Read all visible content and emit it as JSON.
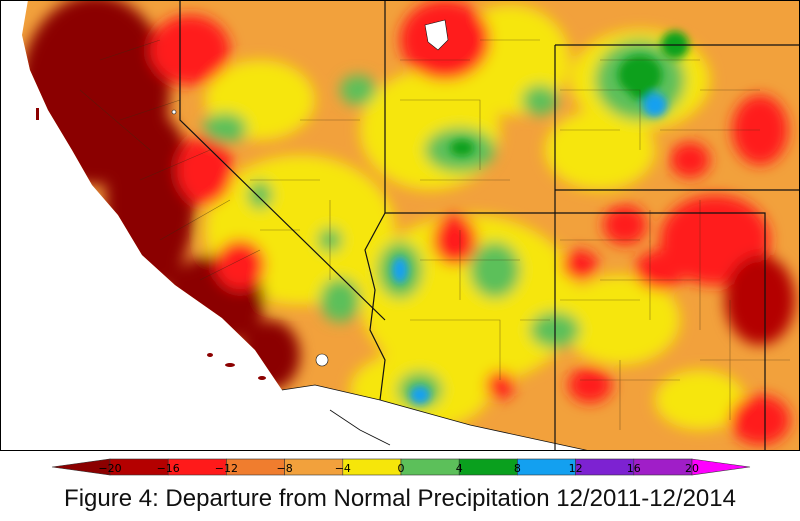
{
  "figure": {
    "caption": "Figure 4: Departure from Normal Precipitation 12/2011-12/2014"
  },
  "map": {
    "subject": "Departure from normal precipitation, southwestern United States",
    "colors": {
      "ocean": "#ffffff",
      "land_base": "#f2a13c"
    }
  },
  "legend": {
    "ticks": [
      "−20",
      "−16",
      "−12",
      "−8",
      "−4",
      "0",
      "4",
      "8",
      "12",
      "16",
      "20"
    ],
    "color_bins": [
      {
        "range": "< -20",
        "color": "#8b0000"
      },
      {
        "range": "-20 to -16",
        "color": "#b40000"
      },
      {
        "range": "-16 to -12",
        "color": "#ff1a1a"
      },
      {
        "range": "-12 to -8",
        "color": "#f07d2e"
      },
      {
        "range": "-8 to -4",
        "color": "#f2a13c"
      },
      {
        "range": "-4 to 0",
        "color": "#f6e60a"
      },
      {
        "range": "0 to 4",
        "color": "#5cc05a"
      },
      {
        "range": "4 to 8",
        "color": "#0aa01e"
      },
      {
        "range": "8 to 12",
        "color": "#13a0f0"
      },
      {
        "range": "12 to 16",
        "color": "#7d22d2"
      },
      {
        "range": "16 to 20",
        "color": "#a01ec8"
      },
      {
        "range": "> 20",
        "color": "#ff00ff"
      }
    ]
  }
}
